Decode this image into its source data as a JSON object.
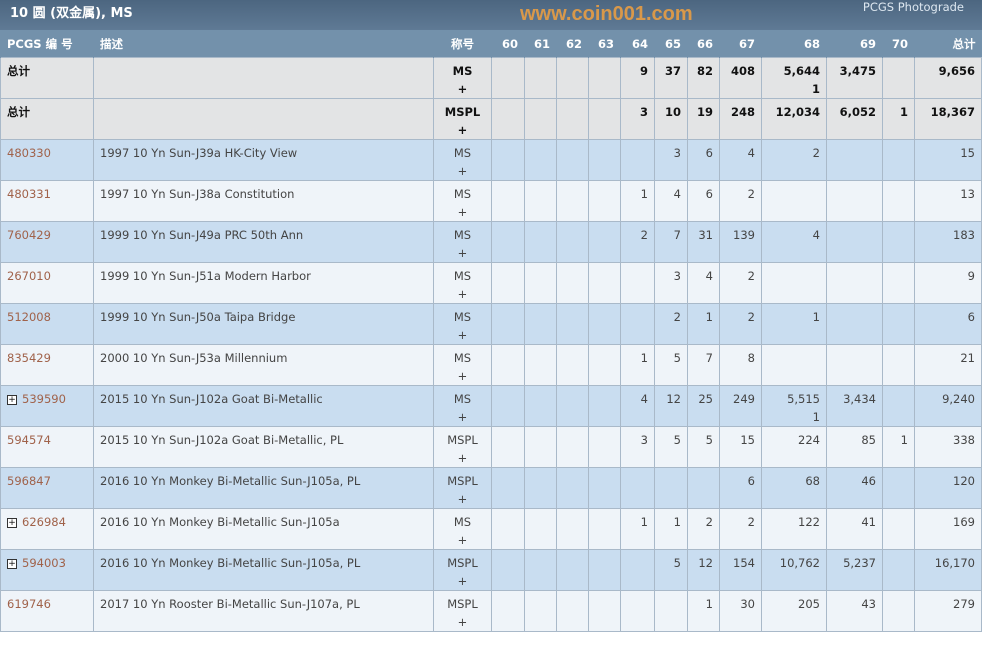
{
  "header": {
    "title": "10 圆 (双金属), MS",
    "photograde_link": "PCGS Photograde"
  },
  "columns": [
    "PCGS 编 号",
    "描述",
    "称号",
    "60",
    "61",
    "62",
    "63",
    "64",
    "65",
    "66",
    "67",
    "68",
    "69",
    "70",
    "总计"
  ],
  "rows": [
    {
      "type": "total",
      "pcgs": "总计",
      "desc": "",
      "grade": "MS\n+",
      "vals": [
        "",
        "",
        "",
        "",
        "9",
        "37",
        "82",
        "408",
        "5,644\n1",
        "3,475",
        ""
      ],
      "total": "9,656"
    },
    {
      "type": "total",
      "pcgs": "总计",
      "desc": "",
      "grade": "MSPL\n+",
      "vals": [
        "",
        "",
        "",
        "",
        "3",
        "10",
        "19",
        "248",
        "12,034",
        "6,052",
        "1"
      ],
      "total": "18,367"
    },
    {
      "pcgs": "480330",
      "desc": "1997 10 Yn Sun-J39a HK-City View",
      "grade": "MS\n+",
      "vals": [
        "",
        "",
        "",
        "",
        "",
        "3",
        "6",
        "4",
        "2",
        "",
        ""
      ],
      "total": "15"
    },
    {
      "pcgs": "480331",
      "desc": "1997 10 Yn Sun-J38a Constitution",
      "grade": "MS\n+",
      "vals": [
        "",
        "",
        "",
        "",
        "1",
        "4",
        "6",
        "2",
        "",
        "",
        ""
      ],
      "total": "13"
    },
    {
      "pcgs": "760429",
      "desc": "1999 10 Yn Sun-J49a PRC 50th Ann",
      "grade": "MS\n+",
      "vals": [
        "",
        "",
        "",
        "",
        "2",
        "7",
        "31",
        "139",
        "4",
        "",
        ""
      ],
      "total": "183"
    },
    {
      "pcgs": "267010",
      "desc": "1999 10 Yn Sun-J51a Modern Harbor",
      "grade": "MS\n+",
      "vals": [
        "",
        "",
        "",
        "",
        "",
        "3",
        "4",
        "2",
        "",
        "",
        ""
      ],
      "total": "9"
    },
    {
      "pcgs": "512008",
      "desc": "1999 10 Yn Sun-J50a Taipa Bridge",
      "grade": "MS\n+",
      "vals": [
        "",
        "",
        "",
        "",
        "",
        "2",
        "1",
        "2",
        "1",
        "",
        ""
      ],
      "total": "6"
    },
    {
      "pcgs": "835429",
      "desc": "2000 10 Yn Sun-J53a Millennium",
      "grade": "MS\n+",
      "vals": [
        "",
        "",
        "",
        "",
        "1",
        "5",
        "7",
        "8",
        "",
        "",
        ""
      ],
      "total": "21"
    },
    {
      "pcgs": "539590",
      "expand": true,
      "desc": "2015 10 Yn Sun-J102a Goat Bi-Metallic",
      "grade": "MS\n+",
      "vals": [
        "",
        "",
        "",
        "",
        "4",
        "12",
        "25",
        "249",
        "5,515\n1",
        "3,434",
        ""
      ],
      "total": "9,240"
    },
    {
      "pcgs": "594574",
      "desc": "2015 10 Yn Sun-J102a Goat Bi-Metallic, PL",
      "grade": "MSPL\n+",
      "vals": [
        "",
        "",
        "",
        "",
        "3",
        "5",
        "5",
        "15",
        "224",
        "85",
        "1"
      ],
      "total": "338"
    },
    {
      "pcgs": "596847",
      "desc": "2016 10 Yn Monkey Bi-Metallic Sun-J105a, PL",
      "grade": "MSPL\n+",
      "vals": [
        "",
        "",
        "",
        "",
        "",
        "",
        "",
        "6",
        "68",
        "46",
        ""
      ],
      "total": "120"
    },
    {
      "pcgs": "626984",
      "expand": true,
      "desc": "2016 10 Yn Monkey Bi-Metallic Sun-J105a",
      "grade": "MS\n+",
      "vals": [
        "",
        "",
        "",
        "",
        "1",
        "1",
        "2",
        "2",
        "122",
        "41",
        ""
      ],
      "total": "169"
    },
    {
      "pcgs": "594003",
      "expand": true,
      "desc": "2016 10 Yn Monkey Bi-Metallic Sun-J105a, PL",
      "grade": "MSPL\n+",
      "vals": [
        "",
        "",
        "",
        "",
        "",
        "5",
        "12",
        "154",
        "10,762",
        "5,237",
        ""
      ],
      "total": "16,170"
    },
    {
      "pcgs": "619746",
      "desc": "2017 10 Yn Rooster Bi-Metallic Sun-J107a, PL",
      "grade": "MSPL\n+",
      "vals": [
        "",
        "",
        "",
        "",
        "",
        "",
        "1",
        "30",
        "205",
        "43",
        ""
      ],
      "total": "279"
    }
  ],
  "watermark": "www.coin001.com",
  "colors": {
    "header": "#7391ab",
    "row_odd": "#c9ddf0",
    "row_even": "#eff4f9",
    "link": "#a0624a",
    "total_row": "#e3e4e5"
  }
}
